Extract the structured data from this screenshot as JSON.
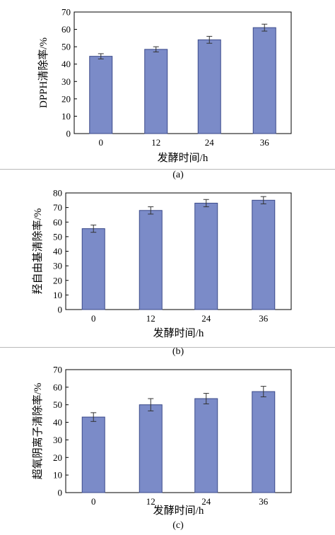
{
  "chart_data": [
    {
      "type": "bar",
      "panel_label": "(a)",
      "categories": [
        "0",
        "12",
        "24",
        "36"
      ],
      "values": [
        44.5,
        48.5,
        54.0,
        61.0
      ],
      "errors": [
        1.5,
        1.5,
        2.0,
        2.0
      ],
      "xlabel": "发酵时间/h",
      "ylabel": "DPPH清除率/%",
      "ylim": [
        0,
        70
      ],
      "yticks": [
        0,
        10,
        20,
        30,
        40,
        50,
        60,
        70
      ],
      "bar_color": "#7b8bc8",
      "grid": false
    },
    {
      "type": "bar",
      "panel_label": "(b)",
      "categories": [
        "0",
        "12",
        "24",
        "36"
      ],
      "values": [
        55.5,
        68.0,
        73.0,
        75.0
      ],
      "errors": [
        2.5,
        2.5,
        2.5,
        2.5
      ],
      "xlabel": "发酵时间/h",
      "ylabel": "羟自由基清除率/%",
      "ylim": [
        0,
        80
      ],
      "yticks": [
        0,
        10,
        20,
        30,
        40,
        50,
        60,
        70,
        80
      ],
      "bar_color": "#7b8bc8",
      "grid": false
    },
    {
      "type": "bar",
      "panel_label": "(c)",
      "categories": [
        "0",
        "12",
        "24",
        "36"
      ],
      "values": [
        43.0,
        50.0,
        53.5,
        57.5
      ],
      "errors": [
        2.5,
        3.5,
        3.0,
        3.0
      ],
      "xlabel": "发酵时间/h",
      "ylabel": "超氧阴离子清除率/%",
      "ylim": [
        0,
        70
      ],
      "yticks": [
        0,
        10,
        20,
        30,
        40,
        50,
        60,
        70
      ],
      "bar_color": "#7b8bc8",
      "grid": false
    }
  ]
}
